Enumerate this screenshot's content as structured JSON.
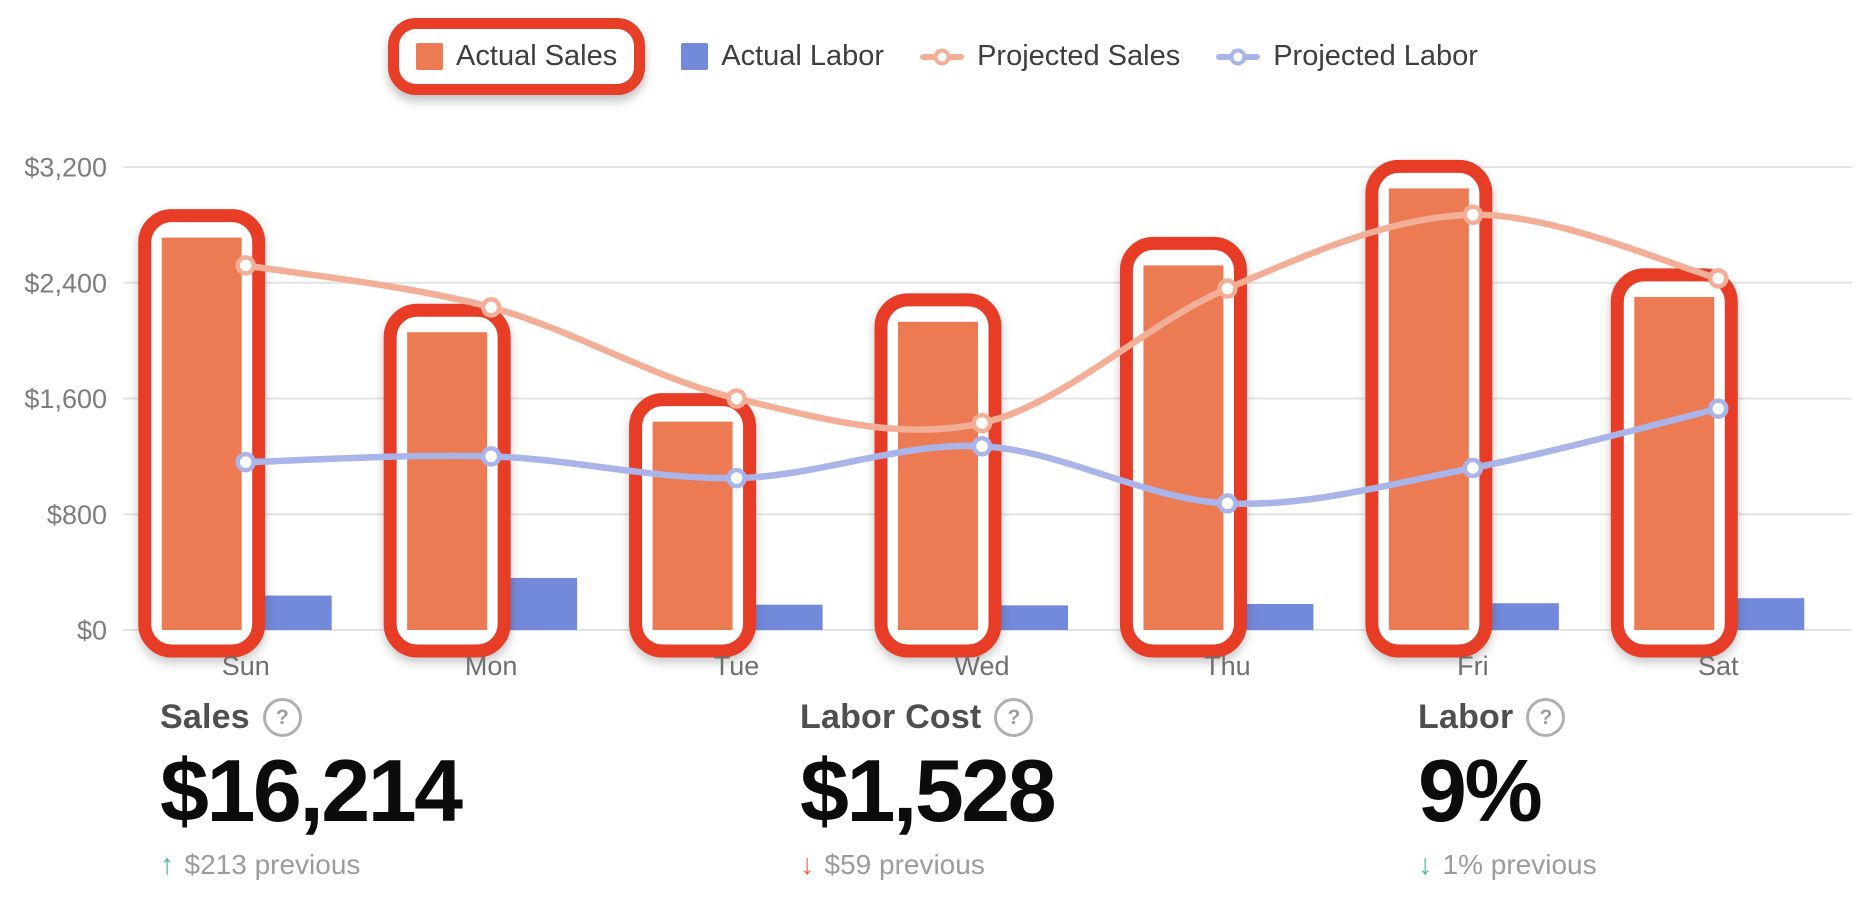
{
  "legend": {
    "items": [
      {
        "label": "Actual Sales",
        "type": "swatch",
        "color": "#ec7a53",
        "highlighted": true
      },
      {
        "label": "Actual Labor",
        "type": "swatch",
        "color": "#7389d9",
        "highlighted": false
      },
      {
        "label": "Projected Sales",
        "type": "line",
        "color": "#f3ae97",
        "highlighted": false
      },
      {
        "label": "Projected Labor",
        "type": "line",
        "color": "#a9b5e9",
        "highlighted": false
      }
    ]
  },
  "chart_data": {
    "type": "bar",
    "categories": [
      "Sun",
      "Mon",
      "Tue",
      "Wed",
      "Thu",
      "Fri",
      "Sat"
    ],
    "series": [
      {
        "name": "Actual Sales",
        "type": "bar",
        "color": "#ec7a53",
        "values": [
          2712,
          2058,
          1440,
          2130,
          2520,
          3052,
          2302
        ],
        "highlighted": true
      },
      {
        "name": "Actual Labor",
        "type": "bar",
        "color": "#7389d9",
        "values": [
          238,
          360,
          175,
          170,
          180,
          185,
          220
        ]
      },
      {
        "name": "Projected Sales",
        "type": "line",
        "color": "#f3ae97",
        "values": [
          2520,
          2230,
          1600,
          1430,
          2360,
          2870,
          2430
        ]
      },
      {
        "name": "Projected Labor",
        "type": "line",
        "color": "#a9b5e9",
        "values": [
          1160,
          1200,
          1050,
          1270,
          875,
          1120,
          1530
        ]
      }
    ],
    "y_ticks": [
      "$3,200",
      "$2,400",
      "$1,600",
      "$800",
      "$0"
    ],
    "y_tick_values": [
      3200,
      2400,
      1600,
      800,
      0
    ],
    "ylim": [
      0,
      3200
    ],
    "grid": true,
    "legend_position": "top",
    "annotation": {
      "color": "#e73e28",
      "highlighted_series": "Actual Sales",
      "description": "Red rounded boxes around the Actual Sales legend item and around each Actual Sales bar"
    }
  },
  "kpis": [
    {
      "title": "Sales",
      "value": "$16,214",
      "arrow": "↑",
      "direction": "up",
      "delta_color": "#4fb9a4",
      "delta": "$213 previous"
    },
    {
      "title": "Labor Cost",
      "value": "$1,528",
      "arrow": "↓",
      "direction": "down",
      "delta_color": "#e96b57",
      "delta": "$59 previous"
    },
    {
      "title": "Labor",
      "value": "9%",
      "arrow": "↓",
      "direction": "down",
      "delta_color": "#4fb9a4",
      "delta": "1% previous"
    }
  ],
  "icons": {
    "help_glyph": "?"
  },
  "colors": {
    "annotation_red": "#e73e28",
    "bar_sales": "#ec7a53",
    "bar_labor": "#7389d9",
    "line_projected_sales": "#f3ae97",
    "line_projected_labor": "#a9b5e9",
    "gridline": "#e4e4e4",
    "axis_tick_text": "#7d7d7d",
    "day_label_text": "#6f6f6f"
  }
}
